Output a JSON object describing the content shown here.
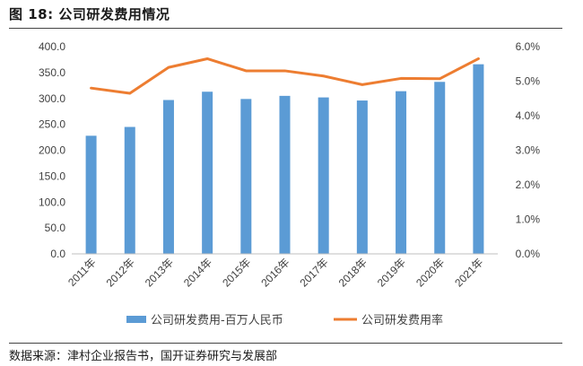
{
  "figure": {
    "title": "图 18:  公司研发费用情况",
    "source": "数据来源：津村企业报告书，国开证券研究与发展部"
  },
  "chart_data": {
    "type": "bar",
    "categories": [
      "2011年",
      "2012年",
      "2013年",
      "2014年",
      "2015年",
      "2016年",
      "2017年",
      "2018年",
      "2019年",
      "2020年",
      "2021年"
    ],
    "series": [
      {
        "name": "公司研发费用-百万人民币",
        "type": "bar",
        "axis": "left",
        "color": "#5b9bd5",
        "values": [
          228,
          245,
          297,
          313,
          299,
          305,
          302,
          296,
          314,
          332,
          366
        ]
      },
      {
        "name": "公司研发费用率",
        "type": "line",
        "axis": "right",
        "color": "#ed7d31",
        "values": [
          4.8,
          4.65,
          5.4,
          5.65,
          5.3,
          5.3,
          5.15,
          4.9,
          5.08,
          5.07,
          5.65
        ]
      }
    ],
    "y_left": {
      "lim": [
        0,
        400
      ],
      "ticks": [
        "0.0",
        "50.0",
        "100.0",
        "150.0",
        "200.0",
        "250.0",
        "300.0",
        "350.0",
        "400.0"
      ]
    },
    "y_right": {
      "lim": [
        0,
        6
      ],
      "ticks": [
        "0.0%",
        "1.0%",
        "2.0%",
        "3.0%",
        "4.0%",
        "5.0%",
        "6.0%"
      ]
    },
    "grid": false,
    "legend": "bottom"
  }
}
